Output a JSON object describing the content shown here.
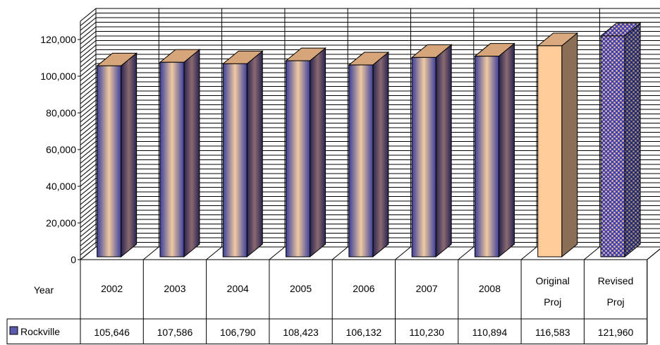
{
  "chart_data": {
    "type": "bar",
    "categories": [
      "2002",
      "2003",
      "2004",
      "2005",
      "2006",
      "2007",
      "2008",
      "Original Proj",
      "Revised Proj"
    ],
    "series": [
      {
        "name": "Rockville",
        "values": [
          105646,
          107586,
          106790,
          108423,
          106132,
          110230,
          110894,
          116583,
          121960
        ]
      }
    ],
    "value_labels": [
      "105,646",
      "107,586",
      "106,790",
      "108,423",
      "106,132",
      "110,230",
      "110,894",
      "116,583",
      "121,960"
    ],
    "row_header": "Year",
    "y_ticks": [
      "0",
      "20,000",
      "40,000",
      "60,000",
      "80,000",
      "100,000",
      "120,000"
    ],
    "ylim": [
      0,
      130000
    ],
    "y_step": 20000,
    "grid": true,
    "style": "3d-column",
    "legend": "data-table",
    "colors": {
      "bar_front_edge": "#3b3f9a",
      "bar_front_center": "#f0c9a0",
      "bar_side_dark": "#2a2350",
      "bar_side_light": "#8a6a70",
      "bar_top": "#d7a57a",
      "original_front": "#ffcc99",
      "original_side": "#8a6e55",
      "original_top": "#d9aa80",
      "revised_base": "#3b3fb0",
      "revised_dot": "#e8b89a",
      "grid": "#000000"
    }
  }
}
